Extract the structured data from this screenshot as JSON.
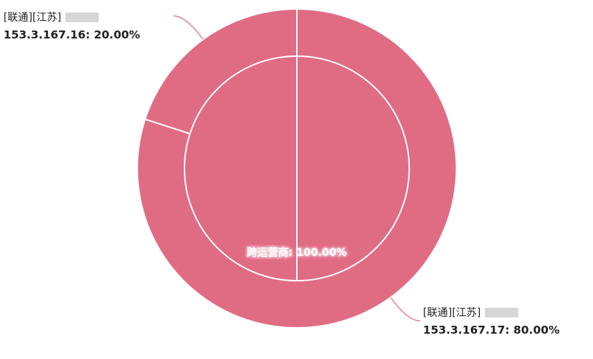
{
  "chart_data": {
    "type": "pie",
    "inner": {
      "categories": [
        "跨运营商"
      ],
      "values": [
        100
      ],
      "value_labels": [
        "跨运营商: 100.00%"
      ]
    },
    "outer": {
      "groups": [
        "[联通][江苏]",
        "[联通][江苏]"
      ],
      "values": [
        80,
        20
      ],
      "value_labels": [
        "153.3.167.17: 80.00%",
        "153.3.167.16: 20.00%"
      ]
    },
    "color": "#e06c84"
  }
}
